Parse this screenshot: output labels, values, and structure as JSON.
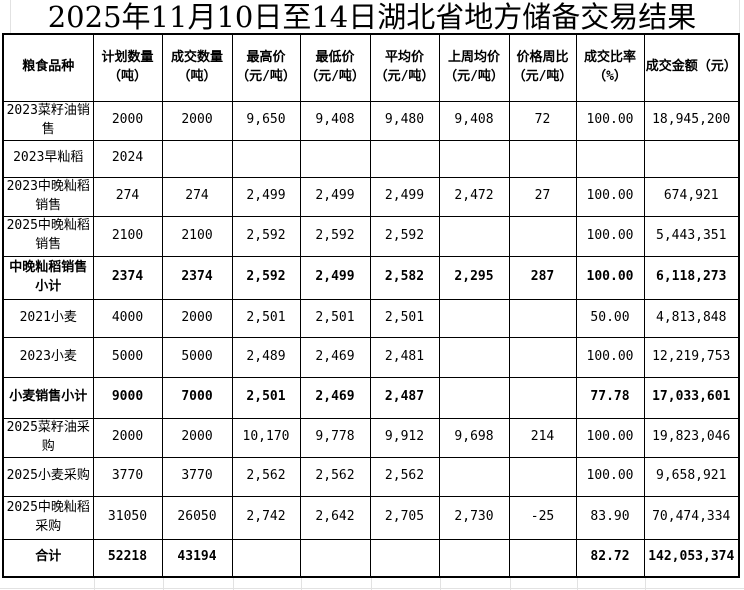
{
  "title": "2025年11月10日至14日湖北省地方储备交易结果",
  "table": {
    "columns": [
      "粮食品种",
      "计划数量\n（吨）",
      "成交数量\n（吨）",
      "最高价\n（元/吨）",
      "最低价\n（元/吨）",
      "平均价\n（元/吨）",
      "上周均价\n（元/吨）",
      "价格周比\n（元/吨）",
      "成交比率\n（%）",
      "成交金额（元）"
    ],
    "rows": [
      {
        "bold": false,
        "cells": [
          "2023菜籽油销售",
          "2000",
          "2000",
          "9,650",
          "9,408",
          "9,480",
          "9,408",
          "72",
          "100.00",
          "18,945,200"
        ]
      },
      {
        "bold": false,
        "cells": [
          "2023早籼稻",
          "2024",
          "",
          "",
          "",
          "",
          "",
          "",
          "",
          ""
        ]
      },
      {
        "bold": false,
        "cells": [
          "2023中晚籼稻销售",
          "274",
          "274",
          "2,499",
          "2,499",
          "2,499",
          "2,472",
          "27",
          "100.00",
          "674,921"
        ]
      },
      {
        "bold": false,
        "cells": [
          "2025中晚籼稻销售",
          "2100",
          "2100",
          "2,592",
          "2,592",
          "2,592",
          "",
          "",
          "100.00",
          "5,443,351"
        ]
      },
      {
        "bold": true,
        "cells": [
          "中晚籼稻销售小计",
          "2374",
          "2374",
          "2,592",
          "2,499",
          "2,582",
          "2,295",
          "287",
          "100.00",
          "6,118,273"
        ]
      },
      {
        "bold": false,
        "cells": [
          "2021小麦",
          "4000",
          "2000",
          "2,501",
          "2,501",
          "2,501",
          "",
          "",
          "50.00",
          "4,813,848"
        ]
      },
      {
        "bold": false,
        "cells": [
          "2023小麦",
          "5000",
          "5000",
          "2,489",
          "2,469",
          "2,481",
          "",
          "",
          "100.00",
          "12,219,753"
        ]
      },
      {
        "bold": true,
        "cells": [
          "小麦销售小计",
          "9000",
          "7000",
          "2,501",
          "2,469",
          "2,487",
          "",
          "",
          "77.78",
          "17,033,601"
        ]
      },
      {
        "bold": false,
        "cells": [
          "2025菜籽油采购",
          "2000",
          "2000",
          "10,170",
          "9,778",
          "9,912",
          "9,698",
          "214",
          "100.00",
          "19,823,046"
        ]
      },
      {
        "bold": false,
        "cells": [
          "2025小麦采购",
          "3770",
          "3770",
          "2,562",
          "2,562",
          "2,562",
          "",
          "",
          "100.00",
          "9,658,921"
        ]
      },
      {
        "bold": false,
        "cells": [
          "2025中晚籼稻采购",
          "31050",
          "26050",
          "2,742",
          "2,642",
          "2,705",
          "2,730",
          "-25",
          "83.90",
          "70,474,334"
        ]
      },
      {
        "bold": true,
        "cells": [
          "合计",
          "52218",
          "43194",
          "",
          "",
          "",
          "",
          "",
          "82.72",
          "142,053,374"
        ]
      }
    ]
  }
}
